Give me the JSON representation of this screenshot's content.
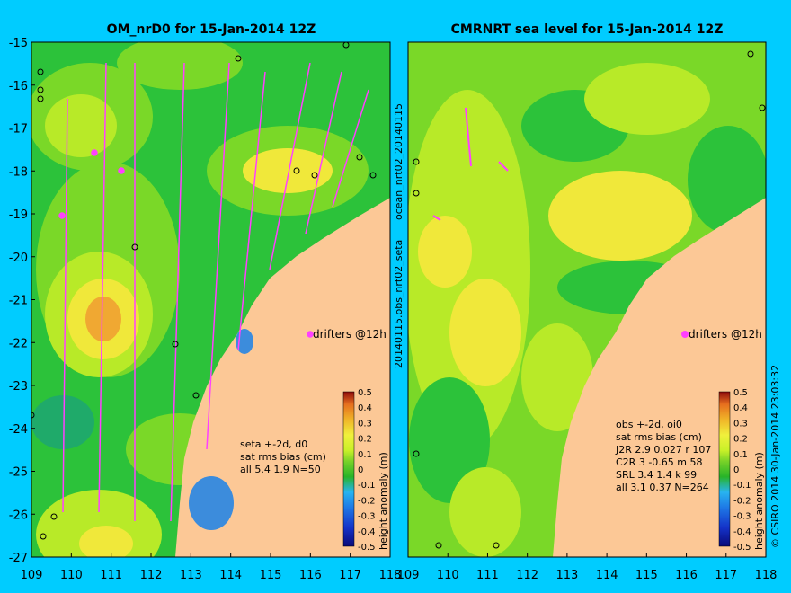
{
  "left_panel": {
    "title": "OM_nrD0 for 15-Jan-2014 12Z",
    "x_ticks": [
      "109",
      "110",
      "111",
      "112",
      "113",
      "114",
      "115",
      "116",
      "117",
      "118"
    ],
    "y_ticks": [
      "-15",
      "-16",
      "-17",
      "-18",
      "-19",
      "-20",
      "-21",
      "-22",
      "-23",
      "-24",
      "-25",
      "-26",
      "-27"
    ],
    "drifters_label": "drifters @12h",
    "stats": [
      "seta +-2d, d0",
      "sat rms bias (cm)",
      "all 5.4 1.9 N=50"
    ]
  },
  "right_panel": {
    "title": "CMRNRT sea level  for 15-Jan-2014 12Z",
    "x_ticks": [
      "109",
      "110",
      "111",
      "112",
      "113",
      "114",
      "115",
      "116",
      "117",
      "118"
    ],
    "drifters_label": "drifters @12h",
    "stats": [
      "obs +-2d, oi0",
      "sat rms bias (cm)",
      "J2R   2.9 0.027 r 107",
      "C2R   3 -0.65 m 58",
      "SRL    3.4 1.4 k 99",
      "all    3.1 0.37 N=264"
    ]
  },
  "colorbar": {
    "label": "height anomaly (m)",
    "ticks": [
      "0.5",
      "0.4",
      "0.3",
      "0.2",
      "0.1",
      "0",
      "-0.1",
      "-0.2",
      "-0.3",
      "-0.4",
      "-0.5"
    ],
    "colors": [
      "#0a0a78",
      "#1432c8",
      "#1e78e6",
      "#28b4f0",
      "#3cd2a0",
      "#28b428",
      "#78d228",
      "#c8f028",
      "#f0f03c",
      "#f0b428",
      "#e66e1e",
      "#c81e1e",
      "#8c0a0a"
    ]
  },
  "vertical_labels": {
    "left_separator": "20140115.obs_nrt02_seta",
    "left_separator_top": "ocean_nrt02_20140115",
    "copyright": "© CSIRO 2014   30-Jan-2014 23:03:32"
  },
  "map_colors": {
    "land": "#fcc896",
    "ocean_green": "#2cc23a",
    "light_green": "#7ad828",
    "yellow_green": "#b8ea28",
    "yellow": "#f0e83a",
    "orange": "#f0a832",
    "drifter": "#ff40ff"
  }
}
